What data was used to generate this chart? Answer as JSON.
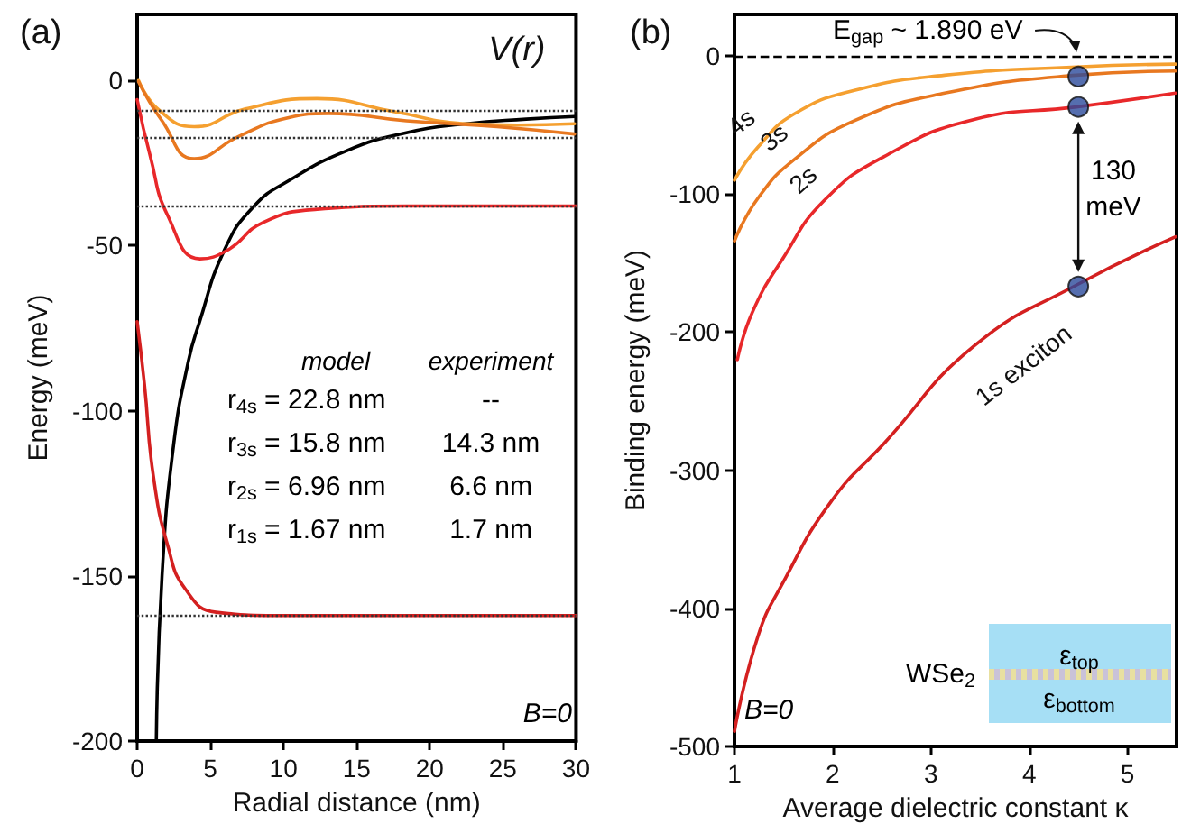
{
  "chart_data": [
    {
      "type": "line",
      "title": "(a)",
      "xlabel": "Radial distance (nm)",
      "ylabel": "Energy (meV)",
      "xlim": [
        0,
        30
      ],
      "ylim": [
        -200,
        20
      ],
      "xticks": [
        0,
        5,
        10,
        15,
        20,
        25,
        30
      ],
      "yticks": [
        -200,
        -150,
        -100,
        -50,
        0
      ],
      "grid": false,
      "legend": false,
      "line_style": "solid",
      "series": [
        {
          "name": "V(r)",
          "color": "#000000",
          "x": [
            1.31,
            1.7,
            2.5,
            3.5,
            4.2,
            6,
            8,
            10.3,
            14.3,
            18.4,
            22.5,
            26.6,
            29.9
          ],
          "values": [
            -200,
            -150,
            -110,
            -85,
            -74,
            -51,
            -38,
            -30.5,
            -21.3,
            -15.8,
            -13.1,
            -11.7,
            -10.9
          ]
        },
        {
          "color": "#f5a030",
          "x": [
            0.1,
            1.5,
            3.9,
            7.4,
            12.3,
            17.6,
            22.5,
            26,
            29.9
          ],
          "values": [
            0,
            -9,
            -14,
            -8.6,
            -5.5,
            -9.5,
            -13.1,
            -13.5,
            -13.1
          ]
        },
        {
          "color": "#e87820",
          "x": [
            0.1,
            1.7,
            3.9,
            7,
            10.3,
            13.1,
            18.4,
            24.6,
            29.9
          ],
          "values": [
            -0.4,
            -12.2,
            -23.7,
            -16.8,
            -11.3,
            -10,
            -12.2,
            -14,
            -16.2
          ]
        },
        {
          "color": "#e8282a",
          "x": [
            0,
            0.9,
            2.1,
            4.3,
            6.2,
            8.6,
            12.3,
            18.4,
            30
          ],
          "values": [
            -5.8,
            -23,
            -41,
            -54,
            -51.3,
            -43,
            -39,
            -38,
            -38
          ]
        },
        {
          "color": "#d42020",
          "x": [
            0,
            0.5,
            1.1,
            2.1,
            3.3,
            5.4,
            10,
            30
          ],
          "values": [
            -73,
            -92,
            -119.5,
            -141,
            -154,
            -161,
            -162,
            -162
          ]
        }
      ],
      "ref_lines": [
        {
          "axis": "y",
          "value": -9,
          "color": "#333333",
          "line_style": "dotted"
        },
        {
          "axis": "y",
          "value": -17,
          "color": "#333333",
          "line_style": "dotted"
        },
        {
          "axis": "y",
          "value": -38,
          "color": "#333333",
          "line_style": "dotted"
        },
        {
          "axis": "y",
          "value": -162,
          "color": "#333333",
          "line_style": "dotted"
        }
      ],
      "annotations": [
        "model",
        "experiment",
        "r$_{4s}$ = 22.8 nm",
        "--",
        "r$_{3s}$ = 15.8 nm",
        "14.3 nm",
        "r$_{2s}$ = 6.96 nm",
        "6.6 nm",
        "r$_{1s}$ = 1.67 nm",
        "1.7 nm",
        "B=0"
      ]
    },
    {
      "type": "line",
      "title": "(b)",
      "xlabel": "Average dielectric constant κ",
      "ylabel": "Binding energy (meV)",
      "xlim": [
        1,
        5.5
      ],
      "ylim": [
        -500,
        30
      ],
      "xticks": [
        1,
        2,
        3,
        4,
        5
      ],
      "yticks": [
        -500,
        -400,
        -300,
        -200,
        -100,
        0
      ],
      "grid": false,
      "legend": false,
      "line_style": "solid",
      "series": [
        {
          "name": "4s",
          "color": "#f5a030",
          "x": [
            1,
            1.24,
            1.61,
            2.22,
            3.14,
            4.48,
            5.49
          ],
          "values": [
            -90,
            -66,
            -42,
            -25,
            -14,
            -8,
            -6
          ]
        },
        {
          "name": "3s",
          "color": "#e87820",
          "x": [
            1,
            1.24,
            1.61,
            2.22,
            3.14,
            4.48,
            5.49
          ],
          "values": [
            -134,
            -103,
            -75,
            -47,
            -27,
            -14,
            -11
          ]
        },
        {
          "name": "2s",
          "color": "#e8282a",
          "x": [
            1.03,
            1.18,
            1.49,
            1.91,
            2.52,
            3.44,
            4.48,
            5.49
          ],
          "values": [
            -220,
            -186,
            -147,
            -105,
            -73,
            -46,
            -37,
            -27
          ]
        },
        {
          "name": "1s exciton",
          "color": "#d42020",
          "x": [
            1,
            1.24,
            1.49,
            1.98,
            2.53,
            3.44,
            4.48,
            5.49
          ],
          "values": [
            -489,
            -420,
            -382,
            -323,
            -280,
            -210,
            -166,
            -131
          ]
        },
        {
          "type": "scatter",
          "color": "#2b4a9b",
          "marker": "circle",
          "x": [
            4.5,
            4.5,
            4.5
          ],
          "values": [
            -15,
            -37,
            -167
          ]
        }
      ],
      "ref_lines": [
        {
          "axis": "y",
          "value": 0,
          "color": "#000000",
          "line_style": "dashed"
        }
      ],
      "annotations": [
        {
          "text": "E$_{gap}$ ~ 1.890 eV",
          "x": 4.5,
          "y": 0
        },
        "130 meV",
        "B=0",
        "WSe$_{2}$",
        "ε$_{top}$",
        "ε$_{bottom}$"
      ]
    }
  ]
}
